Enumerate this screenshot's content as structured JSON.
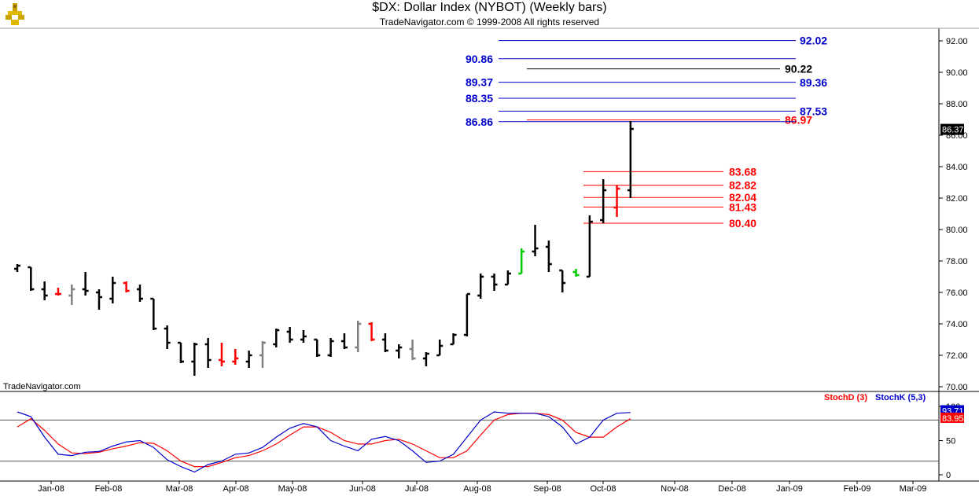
{
  "header": {
    "title": "$DX:  Dollar Index (NYBOT)  (Weekly bars)",
    "subtitle": "TradeNavigator.com © 1999-2008 All rights reserved"
  },
  "watermark": "TradeNavigator.com",
  "colors": {
    "bar_default": "#000000",
    "bar_down": "#ff0000",
    "bar_neutral": "#808080",
    "bar_up": "#00cc00",
    "upper_level": "#0000cc",
    "lower_level": "#ff0000",
    "stoch_d": "#ff0000",
    "stoch_k": "#0000cc"
  },
  "chart_data": {
    "type": "ohlc",
    "title": "$DX:  Dollar Index (NYBOT)  (Weekly bars)",
    "y_range": [
      69.5,
      93.0
    ],
    "y_ticks": [
      70,
      72,
      74,
      76,
      78,
      80,
      82,
      84,
      86,
      88,
      90,
      92
    ],
    "y_tick_labels": [
      "70.00",
      "72.00",
      "74.00",
      "76.00",
      "78.00",
      "80.00",
      "82.00",
      "84.00",
      "86.00",
      "88.00",
      "90.00",
      "92.00"
    ],
    "x_labels": [
      "Jan-08",
      "Feb-08",
      "Mar-08",
      "Apr-08",
      "May-08",
      "Jun-08",
      "Jul-08",
      "Aug-08",
      "Sep-08",
      "Oct-08",
      "Nov-08",
      "Dec-08",
      "Jan-09",
      "Feb-09",
      "Mar-09"
    ],
    "bars": [
      {
        "o": 77.5,
        "h": 77.8,
        "l": 77.3,
        "c": 77.7,
        "color": "default"
      },
      {
        "o": 77.6,
        "h": 77.6,
        "l": 76.1,
        "c": 76.2,
        "color": "default"
      },
      {
        "o": 76.2,
        "h": 76.7,
        "l": 75.5,
        "c": 75.8,
        "color": "default"
      },
      {
        "o": 75.9,
        "h": 76.3,
        "l": 75.8,
        "c": 75.9,
        "color": "down"
      },
      {
        "o": 75.8,
        "h": 76.5,
        "l": 75.2,
        "c": 76.2,
        "color": "neutral"
      },
      {
        "o": 76.2,
        "h": 77.3,
        "l": 75.8,
        "c": 76.1,
        "color": "default"
      },
      {
        "o": 76.0,
        "h": 76.2,
        "l": 74.9,
        "c": 75.7,
        "color": "default"
      },
      {
        "o": 75.6,
        "h": 77.0,
        "l": 75.3,
        "c": 76.6,
        "color": "default"
      },
      {
        "o": 76.6,
        "h": 76.7,
        "l": 76.0,
        "c": 76.1,
        "color": "down"
      },
      {
        "o": 76.2,
        "h": 76.5,
        "l": 75.4,
        "c": 75.6,
        "color": "default"
      },
      {
        "o": 75.6,
        "h": 75.6,
        "l": 73.6,
        "c": 73.7,
        "color": "default"
      },
      {
        "o": 73.7,
        "h": 73.9,
        "l": 72.4,
        "c": 72.8,
        "color": "default"
      },
      {
        "o": 72.8,
        "h": 72.8,
        "l": 71.5,
        "c": 71.6,
        "color": "default"
      },
      {
        "o": 71.6,
        "h": 72.8,
        "l": 70.7,
        "c": 72.7,
        "color": "default"
      },
      {
        "o": 72.7,
        "h": 73.1,
        "l": 71.2,
        "c": 71.7,
        "color": "default"
      },
      {
        "o": 71.7,
        "h": 72.8,
        "l": 71.3,
        "c": 71.6,
        "color": "down"
      },
      {
        "o": 71.6,
        "h": 72.4,
        "l": 71.4,
        "c": 71.8,
        "color": "down"
      },
      {
        "o": 71.6,
        "h": 72.3,
        "l": 71.2,
        "c": 72.0,
        "color": "default"
      },
      {
        "o": 72.0,
        "h": 72.9,
        "l": 71.2,
        "c": 72.8,
        "color": "neutral"
      },
      {
        "o": 72.7,
        "h": 73.7,
        "l": 72.5,
        "c": 73.6,
        "color": "default"
      },
      {
        "o": 73.5,
        "h": 73.8,
        "l": 72.8,
        "c": 73.0,
        "color": "default"
      },
      {
        "o": 73.0,
        "h": 73.6,
        "l": 72.8,
        "c": 73.2,
        "color": "default"
      },
      {
        "o": 73.0,
        "h": 73.0,
        "l": 71.9,
        "c": 72.0,
        "color": "default"
      },
      {
        "o": 72.0,
        "h": 73.1,
        "l": 71.9,
        "c": 72.9,
        "color": "default"
      },
      {
        "o": 72.9,
        "h": 73.4,
        "l": 72.4,
        "c": 72.5,
        "color": "default"
      },
      {
        "o": 72.5,
        "h": 74.2,
        "l": 72.2,
        "c": 74.0,
        "color": "neutral"
      },
      {
        "o": 74.0,
        "h": 74.1,
        "l": 72.9,
        "c": 73.0,
        "color": "down"
      },
      {
        "o": 73.0,
        "h": 73.4,
        "l": 72.2,
        "c": 72.3,
        "color": "default"
      },
      {
        "o": 72.3,
        "h": 72.7,
        "l": 71.8,
        "c": 72.5,
        "color": "default"
      },
      {
        "o": 72.4,
        "h": 73.0,
        "l": 71.7,
        "c": 71.8,
        "color": "neutral"
      },
      {
        "o": 71.8,
        "h": 72.2,
        "l": 71.3,
        "c": 72.1,
        "color": "default"
      },
      {
        "o": 72.0,
        "h": 73.0,
        "l": 72.0,
        "c": 72.6,
        "color": "default"
      },
      {
        "o": 72.7,
        "h": 73.4,
        "l": 72.7,
        "c": 73.3,
        "color": "default"
      },
      {
        "o": 73.3,
        "h": 75.9,
        "l": 73.2,
        "c": 75.9,
        "color": "default"
      },
      {
        "o": 75.8,
        "h": 77.2,
        "l": 75.6,
        "c": 77.0,
        "color": "default"
      },
      {
        "o": 77.0,
        "h": 77.2,
        "l": 76.1,
        "c": 76.5,
        "color": "default"
      },
      {
        "o": 76.5,
        "h": 77.4,
        "l": 76.5,
        "c": 77.2,
        "color": "default"
      },
      {
        "o": 77.2,
        "h": 78.8,
        "l": 77.2,
        "c": 78.6,
        "color": "up"
      },
      {
        "o": 78.6,
        "h": 80.3,
        "l": 78.3,
        "c": 78.8,
        "color": "default"
      },
      {
        "o": 78.9,
        "h": 79.3,
        "l": 77.3,
        "c": 77.8,
        "color": "default"
      },
      {
        "o": 77.4,
        "h": 77.4,
        "l": 76.0,
        "c": 76.6,
        "color": "default"
      },
      {
        "o": 77.3,
        "h": 77.5,
        "l": 77.0,
        "c": 77.1,
        "color": "up"
      },
      {
        "o": 77.0,
        "h": 80.9,
        "l": 77.0,
        "c": 80.5,
        "color": "default"
      },
      {
        "o": 80.6,
        "h": 83.2,
        "l": 80.4,
        "c": 82.5,
        "color": "default"
      },
      {
        "o": 81.4,
        "h": 82.8,
        "l": 80.8,
        "c": 82.6,
        "color": "down"
      },
      {
        "o": 82.5,
        "h": 86.9,
        "l": 82.0,
        "c": 86.4,
        "color": "default"
      }
    ],
    "levels_upper": [
      {
        "value": 92.02,
        "label": "92.02",
        "color": "upper_level"
      },
      {
        "value": 90.86,
        "label": "90.86",
        "color": "upper_level"
      },
      {
        "value": 90.22,
        "label": "90.22",
        "color": "bar_default"
      },
      {
        "value": 89.37,
        "label": "89.37",
        "color": "upper_level"
      },
      {
        "value": 89.36,
        "label": "89.36",
        "color": "upper_level"
      },
      {
        "value": 88.35,
        "label": "88.35",
        "color": "upper_level"
      },
      {
        "value": 87.53,
        "label": "87.53",
        "color": "upper_level"
      },
      {
        "value": 86.97,
        "label": "86.97",
        "color": "lower_level"
      },
      {
        "value": 86.86,
        "label": "86.86",
        "color": "upper_level"
      }
    ],
    "levels_lower": [
      {
        "value": 83.68,
        "label": "83.68"
      },
      {
        "value": 82.82,
        "label": "82.82"
      },
      {
        "value": 82.04,
        "label": "82.04"
      },
      {
        "value": 81.43,
        "label": "81.43"
      },
      {
        "value": 80.4,
        "label": "80.40"
      }
    ],
    "last_value": "86.37",
    "stochastic": {
      "y_range": [
        0,
        100
      ],
      "y_tick_labels": [
        "0",
        "50",
        "100"
      ],
      "overbought": 80,
      "oversold": 20,
      "stoch_d_label": "StochD (3)",
      "stoch_k_label": "StochK (5,3)",
      "stoch_d_value": "83.95",
      "stoch_k_value": "93.71",
      "k": [
        92,
        85,
        55,
        30,
        28,
        33,
        34,
        42,
        48,
        50,
        40,
        22,
        12,
        4,
        15,
        20,
        30,
        32,
        40,
        55,
        68,
        75,
        70,
        50,
        42,
        35,
        52,
        56,
        50,
        35,
        18,
        20,
        30,
        55,
        80,
        92,
        90,
        90,
        90,
        85,
        70,
        45,
        55,
        80,
        90,
        91
      ],
      "d": [
        70,
        82,
        65,
        45,
        32,
        31,
        33,
        38,
        42,
        47,
        46,
        35,
        20,
        12,
        12,
        18,
        25,
        28,
        35,
        45,
        58,
        70,
        70,
        62,
        50,
        45,
        45,
        50,
        52,
        45,
        35,
        25,
        25,
        35,
        58,
        80,
        88,
        90,
        90,
        88,
        80,
        62,
        55,
        55,
        70,
        82
      ]
    }
  }
}
